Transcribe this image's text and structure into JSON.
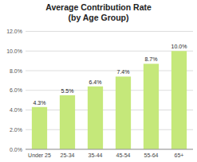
{
  "chart_data": {
    "type": "bar",
    "title": "Average Contribution Rate\n(by Age Group)",
    "categories": [
      "Under 25",
      "25-34",
      "35-44",
      "45-54",
      "55-64",
      "65+"
    ],
    "values": [
      4.3,
      5.5,
      6.4,
      7.4,
      8.7,
      10.0
    ],
    "value_labels": [
      "4.3%",
      "5.5%",
      "6.4%",
      "7.4%",
      "8.7%",
      "10.0%"
    ],
    "color": "#c5e87a",
    "ylim": [
      0,
      12.0
    ],
    "yticks": [
      {
        "value": 0,
        "label": "0.0%"
      },
      {
        "value": 2.0,
        "label": "2.0%"
      },
      {
        "value": 4.0,
        "label": "4.0%"
      },
      {
        "value": 6.0,
        "label": "6.0%"
      },
      {
        "value": 8.0,
        "label": "8.0%"
      },
      {
        "value": 10.0,
        "label": "10.0%"
      },
      {
        "value": 12.0,
        "label": "12.0%"
      }
    ],
    "grid": true,
    "data_labels": true
  }
}
